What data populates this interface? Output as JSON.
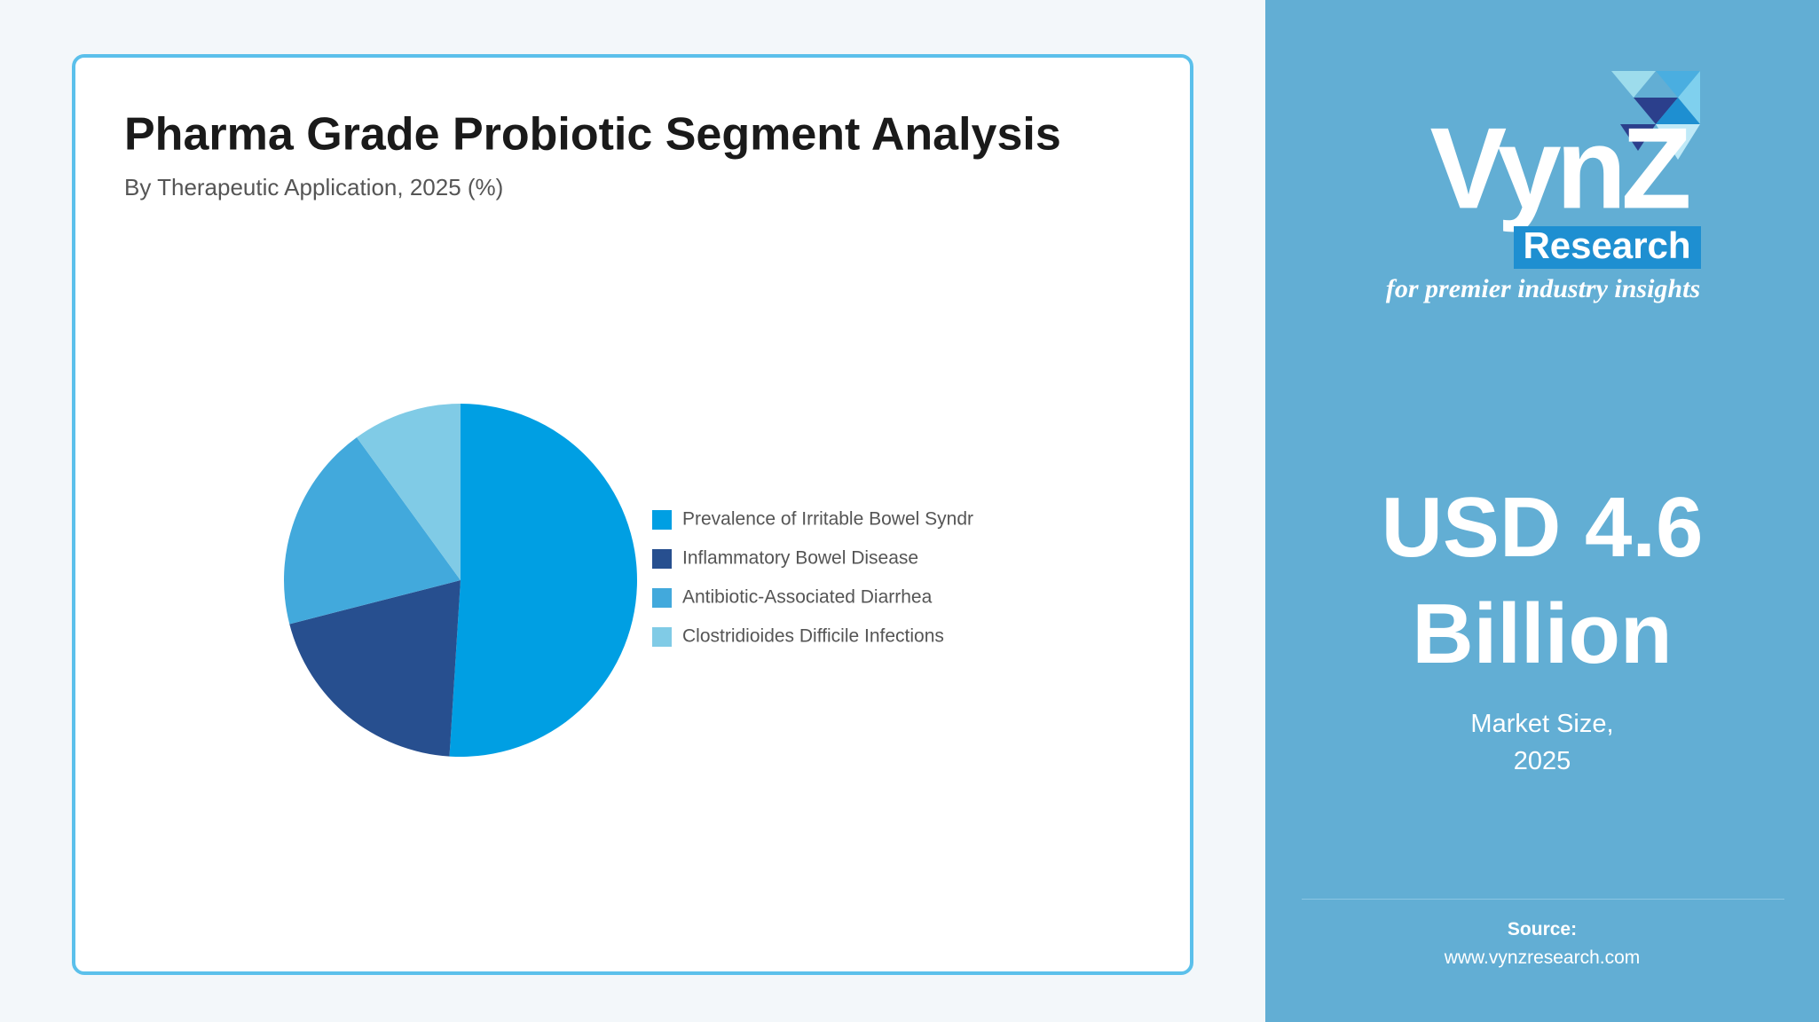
{
  "chart_data": {
    "type": "pie",
    "title": "Pharma Grade Probiotic Segment Analysis",
    "subtitle": "By Therapeutic Application, 2025 (%)",
    "categories": [
      "Prevalence of Irritable Bowel Syndr",
      "Inflammatory Bowel Disease",
      "Antibiotic-Associated Diarrhea",
      "Clostridioides Difficile Infections"
    ],
    "values": [
      51,
      20,
      19,
      10
    ],
    "colors": [
      "#009fe3",
      "#274f8f",
      "#42a9dc",
      "#80cbe6"
    ]
  },
  "brand": {
    "name": "VynZ",
    "sub": "Research",
    "tagline": "for premier industry insights"
  },
  "market": {
    "value": "USD 4.6",
    "unit": "Billion",
    "label": "Market Size,",
    "year": "2025"
  },
  "source": {
    "label": "Source:",
    "url": "www.vynzresearch.com"
  }
}
